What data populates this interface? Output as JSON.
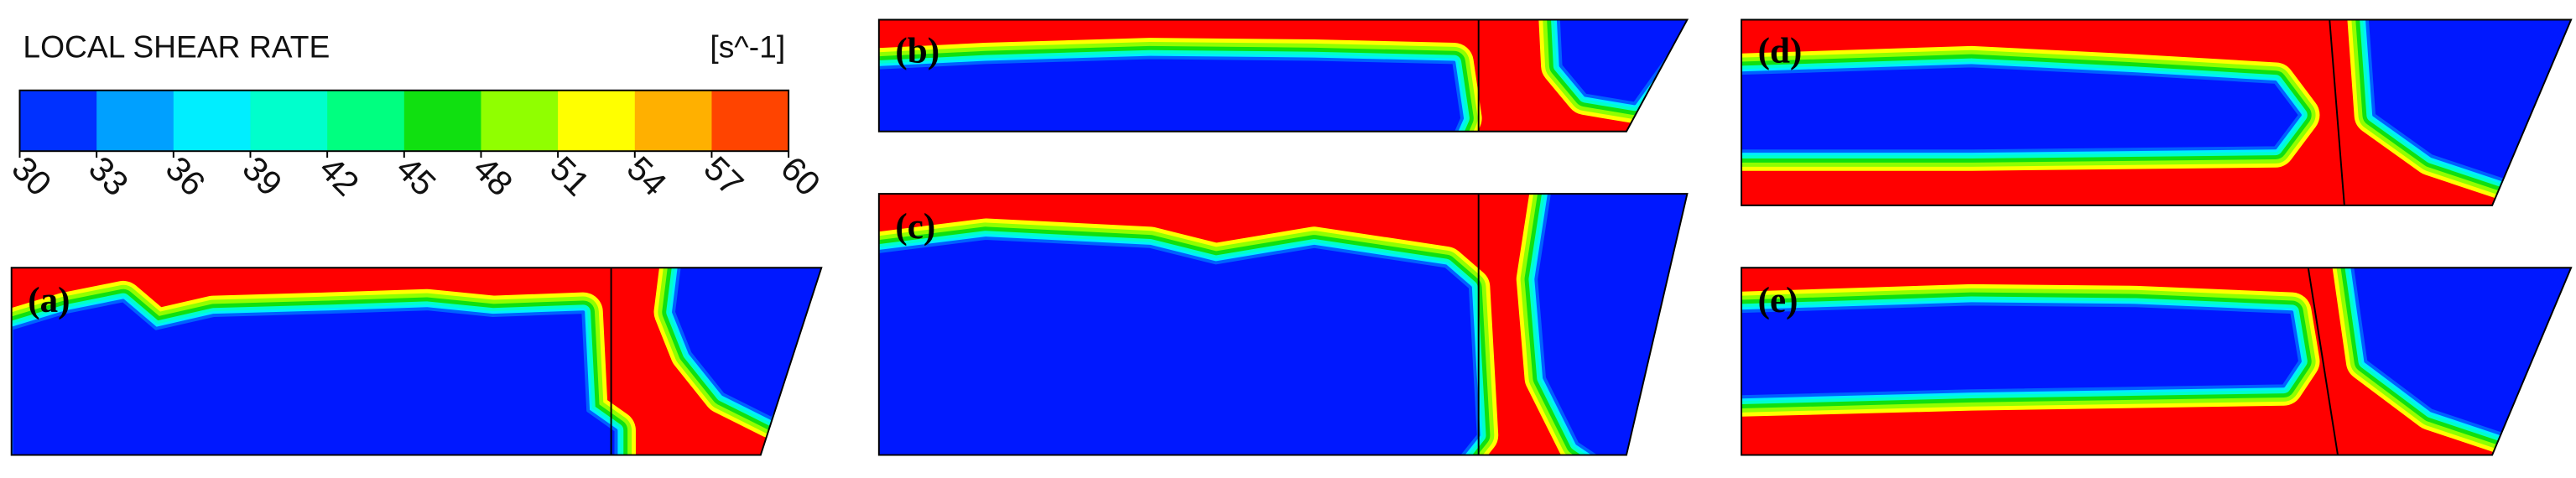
{
  "colorbar": {
    "title": "LOCAL SHEAR RATE",
    "unit": "[s^-1]",
    "ticks": [
      30,
      33,
      36,
      39,
      42,
      45,
      48,
      51,
      54,
      57,
      60
    ],
    "colors": [
      "#0031ff",
      "#00a0ff",
      "#00eeff",
      "#00ffcc",
      "#00ff80",
      "#10e010",
      "#90ff00",
      "#ffff00",
      "#ffb000",
      "#ff4400"
    ]
  },
  "panels": [
    {
      "label": "(a)"
    },
    {
      "label": "(b)"
    },
    {
      "label": "(c)"
    },
    {
      "label": "(d)"
    },
    {
      "label": "(e)"
    }
  ]
}
